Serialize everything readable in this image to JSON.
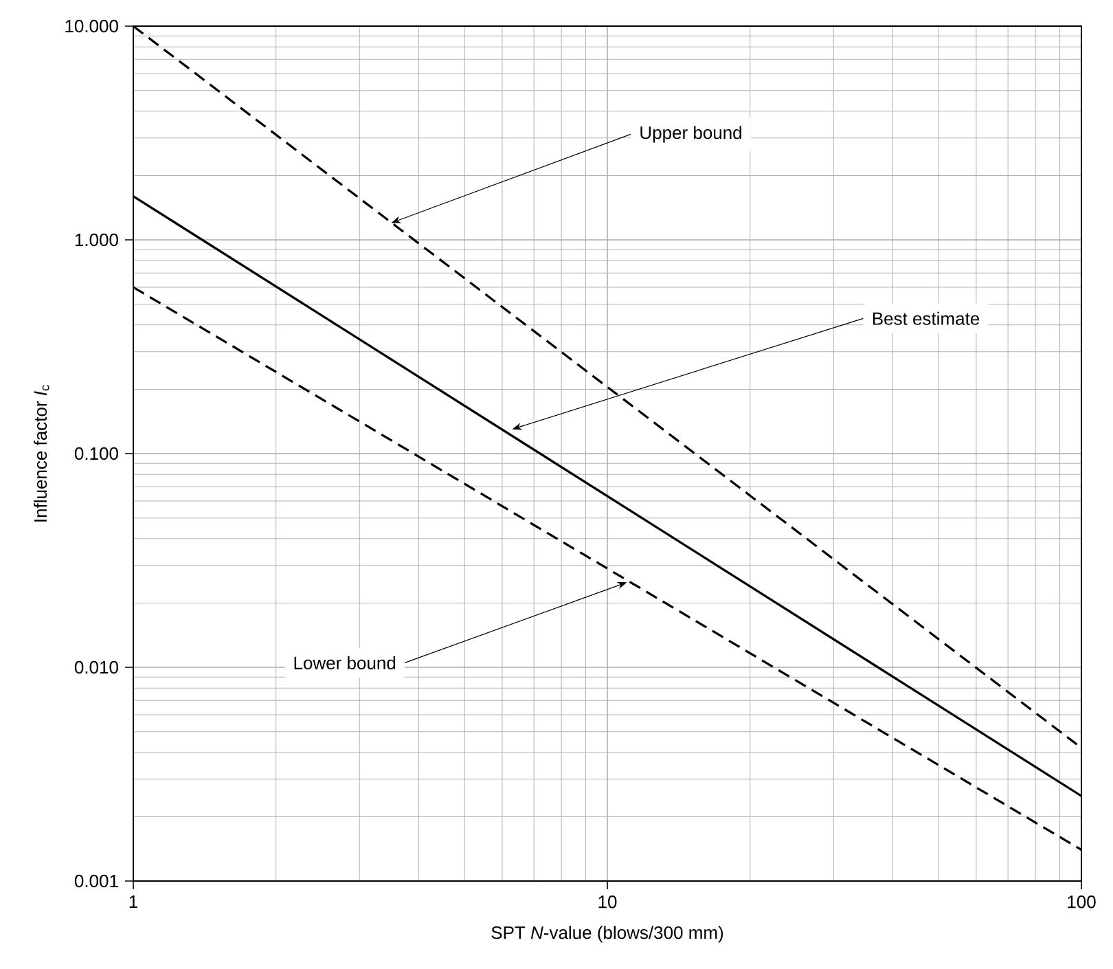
{
  "chart_data": {
    "type": "line",
    "xlabel": "SPT *N*-value (blows/300 mm)",
    "ylabel": "Influence factor *I*$_{c}$",
    "log": "xy",
    "grid": true,
    "marker": "none",
    "xlim": [
      1,
      100
    ],
    "ylim": [
      0.001,
      10
    ],
    "xticks": [
      1,
      10,
      100
    ],
    "yticks": [
      {
        "value": 0.001,
        "label": "0.001"
      },
      {
        "value": 0.01,
        "label": "0.010"
      },
      {
        "value": 0.1,
        "label": "0.100"
      },
      {
        "value": 1,
        "label": "1.000"
      },
      {
        "value": 10,
        "label": "10.000"
      }
    ],
    "x": [
      1,
      100
    ],
    "series": [
      {
        "color": "#000000",
        "line_style": "dashed",
        "values": [
          10,
          0.0042
        ]
      },
      {
        "color": "#000000",
        "line_style": "solid",
        "values": [
          1.6,
          0.0025
        ]
      },
      {
        "color": "#000000",
        "line_style": "dashed",
        "values": [
          0.6,
          0.0014
        ]
      }
    ],
    "annotations": [
      {
        "text": "Upper bound",
        "x": 3.5,
        "y": 1.2
      },
      {
        "text": "Best estimate",
        "x": 6.3,
        "y": 0.13
      },
      {
        "text": "Lower bound",
        "x": 11,
        "y": 0.025
      }
    ]
  }
}
